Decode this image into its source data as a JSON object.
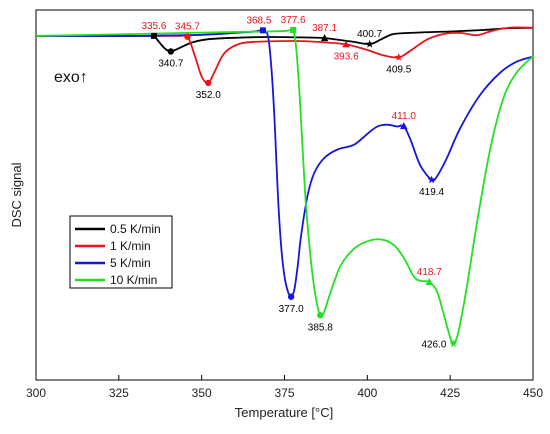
{
  "chart_data": {
    "type": "line",
    "xlabel": "Temperature [°C]",
    "ylabel": "DSC signal",
    "xlim": [
      300,
      450
    ],
    "xticks": [
      "300",
      "325",
      "350",
      "375",
      "400",
      "425",
      "450"
    ],
    "ylim": [
      0,
      100
    ],
    "yticks_shown": false,
    "grid": false,
    "legend_position": "lower-left",
    "exo_label": "exo↑",
    "series": [
      {
        "name": "0.5 K/min",
        "color": "#000000",
        "points": [
          [
            300,
            93.0
          ],
          [
            320,
            93.0
          ],
          [
            334,
            93.0
          ],
          [
            335.6,
            93.0
          ],
          [
            337,
            91.5
          ],
          [
            339,
            89.5
          ],
          [
            340.7,
            88.8
          ],
          [
            343,
            89.6
          ],
          [
            347,
            91.2
          ],
          [
            352,
            92.1
          ],
          [
            360,
            92.5
          ],
          [
            370,
            92.7
          ],
          [
            380,
            92.6
          ],
          [
            387.1,
            92.4
          ],
          [
            395,
            91.5
          ],
          [
            400.7,
            90.8
          ],
          [
            404,
            92.0
          ],
          [
            408,
            93.5
          ],
          [
            415,
            93.9
          ],
          [
            425,
            94.2
          ],
          [
            435,
            94.6
          ],
          [
            443,
            95.1
          ],
          [
            450,
            95.2
          ]
        ],
        "markers": [
          {
            "x": 335.6,
            "y": 93.0,
            "shape": "square"
          },
          {
            "x": 340.7,
            "y": 88.8,
            "shape": "circle"
          },
          {
            "x": 387.1,
            "y": 92.4,
            "shape": "triangle"
          },
          {
            "x": 400.7,
            "y": 90.8,
            "shape": "star"
          }
        ]
      },
      {
        "name": "1 K/min",
        "color": "#e8141b",
        "points": [
          [
            300,
            93.0
          ],
          [
            330,
            93.0
          ],
          [
            343,
            93.0
          ],
          [
            345.7,
            92.8
          ],
          [
            348,
            87.5
          ],
          [
            350,
            82.0
          ],
          [
            352.0,
            80.3
          ],
          [
            354,
            83.5
          ],
          [
            357,
            88.5
          ],
          [
            362,
            91.0
          ],
          [
            370,
            91.5
          ],
          [
            380,
            91.6
          ],
          [
            388,
            91.2
          ],
          [
            393.6,
            90.7
          ],
          [
            400,
            89.2
          ],
          [
            405,
            87.7
          ],
          [
            409.5,
            87.2
          ],
          [
            413,
            89.0
          ],
          [
            418,
            92.0
          ],
          [
            423,
            93.5
          ],
          [
            428,
            93.8
          ],
          [
            433,
            93.2
          ],
          [
            437,
            94.2
          ],
          [
            441,
            95.0
          ],
          [
            445,
            95.3
          ],
          [
            450,
            95.2
          ]
        ],
        "markers": [
          {
            "x": 345.7,
            "y": 92.8,
            "shape": "circle"
          },
          {
            "x": 352.0,
            "y": 80.3,
            "shape": "circle"
          },
          {
            "x": 393.6,
            "y": 90.7,
            "shape": "triangle"
          },
          {
            "x": 409.5,
            "y": 87.2,
            "shape": "star"
          }
        ]
      },
      {
        "name": "5 K/min",
        "color": "#1515dc",
        "points": [
          [
            300,
            93.0
          ],
          [
            330,
            93.0
          ],
          [
            350,
            93.3
          ],
          [
            360,
            93.8
          ],
          [
            366,
            94.2
          ],
          [
            368.5,
            94.5
          ],
          [
            370,
            93.0
          ],
          [
            371,
            85.0
          ],
          [
            372,
            70.0
          ],
          [
            373,
            50.0
          ],
          [
            374,
            36.0
          ],
          [
            375,
            28.0
          ],
          [
            376,
            24.0
          ],
          [
            377.0,
            22.5
          ],
          [
            378,
            24.5
          ],
          [
            379,
            31.0
          ],
          [
            380,
            39.0
          ],
          [
            382,
            50.0
          ],
          [
            384,
            56.0
          ],
          [
            387,
            60.0
          ],
          [
            391,
            62.3
          ],
          [
            396,
            63.6
          ],
          [
            400,
            66.5
          ],
          [
            403,
            68.5
          ],
          [
            406,
            69.0
          ],
          [
            409,
            68.5
          ],
          [
            411.0,
            68.6
          ],
          [
            413,
            65.0
          ],
          [
            416,
            58.0
          ],
          [
            419.4,
            54.1
          ],
          [
            421,
            55.0
          ],
          [
            424,
            60.0
          ],
          [
            428,
            68.0
          ],
          [
            434,
            77.0
          ],
          [
            440,
            83.0
          ],
          [
            445,
            86.0
          ],
          [
            450,
            87.4
          ]
        ],
        "markers": [
          {
            "x": 368.5,
            "y": 94.5,
            "shape": "square"
          },
          {
            "x": 377.0,
            "y": 22.5,
            "shape": "circle"
          },
          {
            "x": 411.0,
            "y": 68.6,
            "shape": "triangle"
          },
          {
            "x": 419.4,
            "y": 54.1,
            "shape": "star"
          }
        ]
      },
      {
        "name": "10 K/min",
        "color": "#22e022",
        "points": [
          [
            300,
            93.0
          ],
          [
            330,
            93.5
          ],
          [
            350,
            93.9
          ],
          [
            370,
            94.2
          ],
          [
            376,
            94.4
          ],
          [
            377.6,
            94.6
          ],
          [
            378.5,
            90.0
          ],
          [
            379.5,
            78.0
          ],
          [
            380.5,
            62.0
          ],
          [
            381.5,
            47.0
          ],
          [
            383,
            32.0
          ],
          [
            384.5,
            22.0
          ],
          [
            385.8,
            17.5
          ],
          [
            387,
            18.5
          ],
          [
            389,
            24.0
          ],
          [
            392,
            31.0
          ],
          [
            396,
            35.5
          ],
          [
            400,
            37.5
          ],
          [
            404,
            38.0
          ],
          [
            408,
            36.5
          ],
          [
            411,
            33.0
          ],
          [
            414,
            28.0
          ],
          [
            416,
            26.8
          ],
          [
            418.7,
            26.5
          ],
          [
            421,
            24.0
          ],
          [
            423,
            18.0
          ],
          [
            425,
            11.5
          ],
          [
            426.0,
            9.8
          ],
          [
            427.5,
            13.0
          ],
          [
            430,
            25.0
          ],
          [
            433,
            42.0
          ],
          [
            437,
            62.0
          ],
          [
            441,
            76.0
          ],
          [
            445,
            83.0
          ],
          [
            450,
            87.5
          ]
        ],
        "markers": [
          {
            "x": 377.6,
            "y": 94.6,
            "shape": "square"
          },
          {
            "x": 385.8,
            "y": 17.5,
            "shape": "circle"
          },
          {
            "x": 418.7,
            "y": 26.5,
            "shape": "triangle"
          },
          {
            "x": 426.0,
            "y": 9.8,
            "shape": "star"
          }
        ]
      }
    ],
    "annotations": [
      {
        "text": "335.6",
        "x": 335.6,
        "y": 93.0,
        "color": "#e8141b",
        "anchor": "above"
      },
      {
        "text": "345.7",
        "x": 345.7,
        "y": 92.8,
        "color": "#e8141b",
        "anchor": "above"
      },
      {
        "text": "340.7",
        "x": 340.7,
        "y": 88.8,
        "color": "#000000",
        "anchor": "below"
      },
      {
        "text": "352.0",
        "x": 352.0,
        "y": 80.3,
        "color": "#000000",
        "anchor": "below"
      },
      {
        "text": "368.5",
        "x": 368.5,
        "y": 94.5,
        "color": "#e8141b",
        "anchor": "above-left"
      },
      {
        "text": "377.6",
        "x": 377.6,
        "y": 94.6,
        "color": "#e8141b",
        "anchor": "above"
      },
      {
        "text": "387.1",
        "x": 387.1,
        "y": 92.4,
        "color": "#e8141b",
        "anchor": "above"
      },
      {
        "text": "400.7",
        "x": 400.7,
        "y": 90.8,
        "color": "#000000",
        "anchor": "above"
      },
      {
        "text": "393.6",
        "x": 393.6,
        "y": 90.7,
        "color": "#e8141b",
        "anchor": "below"
      },
      {
        "text": "409.5",
        "x": 409.5,
        "y": 87.2,
        "color": "#000000",
        "anchor": "below"
      },
      {
        "text": "411.0",
        "x": 411.0,
        "y": 68.6,
        "color": "#e8141b",
        "anchor": "above"
      },
      {
        "text": "419.4",
        "x": 419.4,
        "y": 54.1,
        "color": "#000000",
        "anchor": "below"
      },
      {
        "text": "377.0",
        "x": 377.0,
        "y": 22.5,
        "color": "#000000",
        "anchor": "below"
      },
      {
        "text": "418.7",
        "x": 418.7,
        "y": 26.5,
        "color": "#e8141b",
        "anchor": "above"
      },
      {
        "text": "385.8",
        "x": 385.8,
        "y": 17.5,
        "color": "#000000",
        "anchor": "below"
      },
      {
        "text": "426.0",
        "x": 426.0,
        "y": 9.8,
        "color": "#000000",
        "anchor": "left"
      }
    ]
  }
}
